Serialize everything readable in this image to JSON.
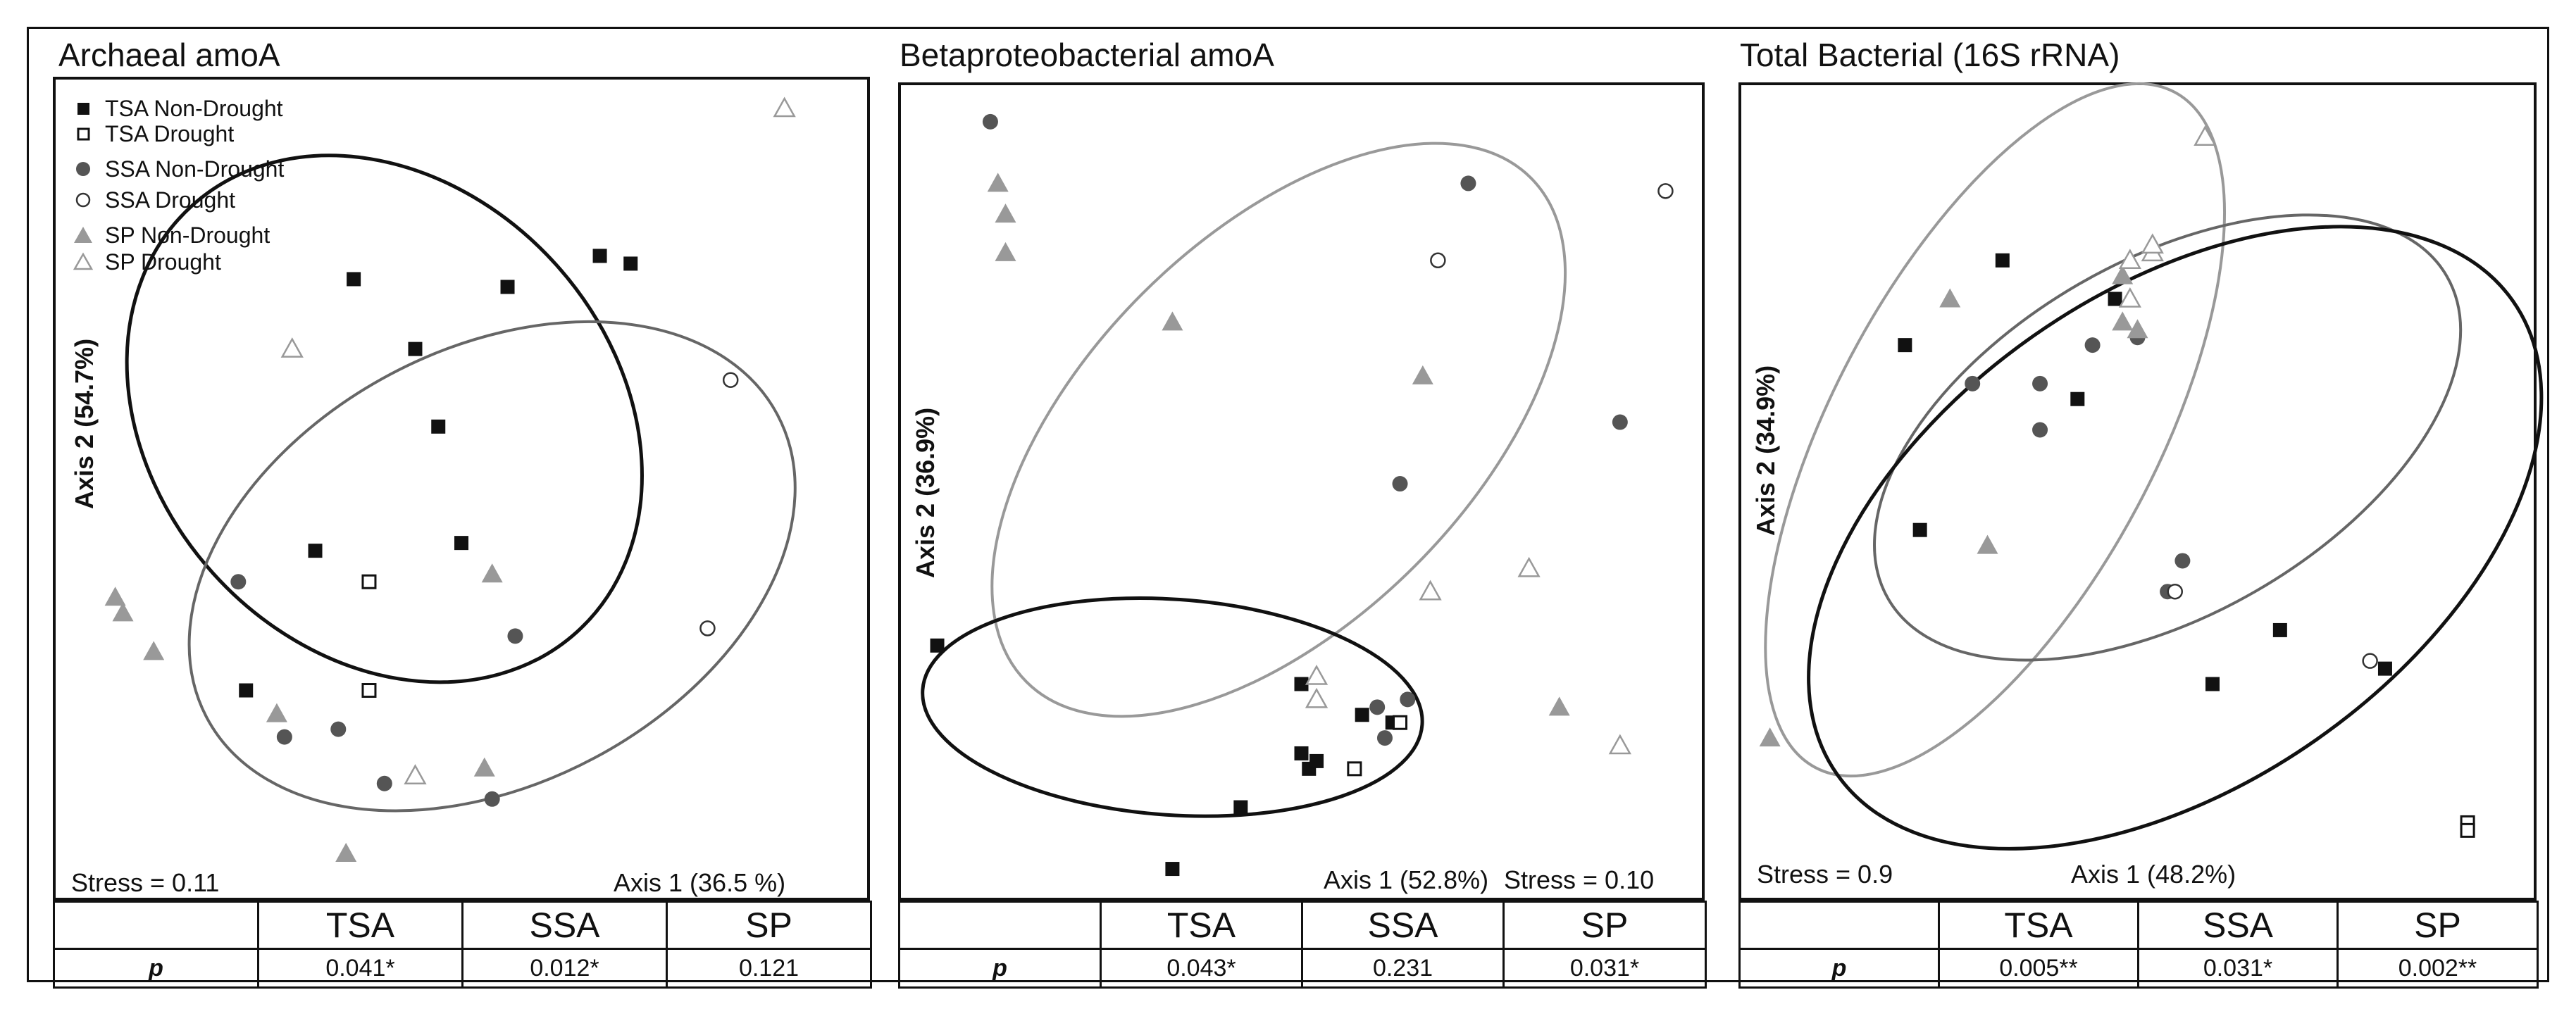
{
  "legend": [
    {
      "label": "TSA Non-Drought",
      "marker": "square-filled"
    },
    {
      "label": "TSA Drought",
      "marker": "square-open"
    },
    {
      "label": "SSA Non-Drought",
      "marker": "circle-filled"
    },
    {
      "label": "SSA Drought",
      "marker": "circle-open"
    },
    {
      "label": "SP Non-Drought",
      "marker": "triangle-filled"
    },
    {
      "label": "SP Drought",
      "marker": "triangle-open"
    }
  ],
  "colors": {
    "tsa": "#111111",
    "ssa": "#555555",
    "sp": "#999999",
    "ellipse_tsa": "#111111",
    "ellipse_ssa": "#666666",
    "ellipse_sp": "#999999"
  },
  "table_headers": [
    "TSA",
    "SSA",
    "SP"
  ],
  "p_label": "p",
  "chart_data": [
    {
      "type": "scatter",
      "title": "Archaeal amoA",
      "xlabel": "Axis 1 (36.5 %)",
      "ylabel": "Axis 2 (54.7%)",
      "stress": "Stress = 0.11",
      "xlim": [
        0,
        100
      ],
      "ylim": [
        0,
        100
      ],
      "p_values": [
        "0.041*",
        "0.012*",
        "0.121"
      ],
      "series": [
        {
          "name": "TSA Non-Drought",
          "marker": "square-filled",
          "points": [
            [
              36,
              77
            ],
            [
              56,
              76
            ],
            [
              68,
              80
            ],
            [
              72,
              79
            ],
            [
              44,
              68
            ],
            [
              47,
              58
            ],
            [
              31,
              42
            ],
            [
              50,
              43
            ],
            [
              22,
              24
            ]
          ]
        },
        {
          "name": "TSA Drought",
          "marker": "square-open",
          "points": [
            [
              38,
              38
            ],
            [
              38,
              24
            ]
          ]
        },
        {
          "name": "SSA Non-Drought",
          "marker": "circle-filled",
          "points": [
            [
              21,
              38
            ],
            [
              57,
              31
            ],
            [
              27,
              18
            ],
            [
              34,
              19
            ],
            [
              40,
              12
            ],
            [
              54,
              10
            ]
          ]
        },
        {
          "name": "SSA Drought",
          "marker": "circle-open",
          "points": [
            [
              85,
              64
            ],
            [
              82,
              32
            ]
          ]
        },
        {
          "name": "SP Non-Drought",
          "marker": "triangle-filled",
          "points": [
            [
              5,
              36
            ],
            [
              6,
              34
            ],
            [
              10,
              29
            ],
            [
              26,
              21
            ],
            [
              54,
              39
            ],
            [
              53,
              14
            ],
            [
              35,
              3
            ]
          ]
        },
        {
          "name": "SP Drought",
          "marker": "triangle-open",
          "points": [
            [
              28,
              68
            ],
            [
              44,
              13
            ],
            [
              92,
              99
            ]
          ]
        }
      ],
      "ellipses": [
        {
          "group": "TSA",
          "cx": 40,
          "cy": 59,
          "rx": 30,
          "ry": 37,
          "angle": -42
        },
        {
          "group": "SSA",
          "cx": 54,
          "cy": 40,
          "rx": 42,
          "ry": 28,
          "angle": -28
        }
      ]
    },
    {
      "type": "scatter",
      "title": "Betaproteobacterial amoA",
      "xlabel": "Axis 1 (52.8%)",
      "ylabel": "Axis 2 (36.9%)",
      "stress": "Stress = 0.10",
      "xlim": [
        0,
        100
      ],
      "ylim": [
        0,
        100
      ],
      "p_values": [
        "0.043*",
        "0.231",
        "0.031*"
      ],
      "series": [
        {
          "name": "TSA Non-Drought",
          "marker": "square-filled",
          "points": [
            [
              2,
              30
            ],
            [
              50,
              25
            ],
            [
              58,
              21
            ],
            [
              62,
              20
            ],
            [
              50,
              16
            ],
            [
              51,
              14
            ],
            [
              52,
              15
            ],
            [
              42,
              9
            ],
            [
              33,
              1
            ]
          ]
        },
        {
          "name": "TSA Drought",
          "marker": "square-open",
          "points": [
            [
              63,
              20
            ],
            [
              57,
              14
            ]
          ]
        },
        {
          "name": "SSA Non-Drought",
          "marker": "circle-filled",
          "points": [
            [
              9,
              98
            ],
            [
              72,
              90
            ],
            [
              63,
              51
            ],
            [
              92,
              59
            ],
            [
              64,
              23
            ],
            [
              61,
              18
            ],
            [
              60,
              22
            ]
          ]
        },
        {
          "name": "SSA Drought",
          "marker": "circle-open",
          "points": [
            [
              68,
              80
            ],
            [
              98,
              89
            ]
          ]
        },
        {
          "name": "SP Non-Drought",
          "marker": "triangle-filled",
          "points": [
            [
              10,
              90
            ],
            [
              11,
              86
            ],
            [
              11,
              81
            ],
            [
              33,
              72
            ],
            [
              66,
              65
            ],
            [
              84,
              22
            ]
          ]
        },
        {
          "name": "SP Drought",
          "marker": "triangle-open",
          "points": [
            [
              52,
              23
            ],
            [
              67,
              37
            ],
            [
              80,
              40
            ],
            [
              92,
              17
            ],
            [
              52,
              26
            ]
          ]
        }
      ],
      "ellipses": [
        {
          "group": "SP",
          "cx": 47,
          "cy": 58,
          "rx": 47,
          "ry": 25,
          "angle": -45
        },
        {
          "group": "TSA",
          "cx": 33,
          "cy": 22,
          "rx": 33,
          "ry": 14,
          "angle": 4
        }
      ]
    },
    {
      "type": "scatter",
      "title": "Total Bacterial (16S rRNA)",
      "xlabel": "Axis 1 (48.2%)",
      "ylabel": "Axis 2 (34.9%)",
      "stress": "Stress = 0.9",
      "xlim": [
        0,
        100
      ],
      "ylim": [
        0,
        100
      ],
      "p_values": [
        "0.005**",
        "0.031*",
        "0.002**"
      ],
      "series": [
        {
          "name": "TSA Non-Drought",
          "marker": "square-filled",
          "points": [
            [
              32,
              80
            ],
            [
              47,
              75
            ],
            [
              19,
              69
            ],
            [
              42,
              62
            ],
            [
              21,
              45
            ],
            [
              69,
              32
            ],
            [
              83,
              27
            ],
            [
              60,
              25
            ]
          ]
        },
        {
          "name": "TSA Drought",
          "marker": "square-open",
          "points": [
            [
              94,
              7
            ],
            [
              94,
              6
            ]
          ]
        },
        {
          "name": "SSA Non-Drought",
          "marker": "circle-filled",
          "points": [
            [
              28,
              64
            ],
            [
              37,
              64
            ],
            [
              44,
              69
            ],
            [
              50,
              70
            ],
            [
              37,
              58
            ],
            [
              56,
              41
            ],
            [
              54,
              37
            ]
          ]
        },
        {
          "name": "SSA Drought",
          "marker": "circle-open",
          "points": [
            [
              55,
              37
            ],
            [
              81,
              28
            ]
          ]
        },
        {
          "name": "SP Non-Drought",
          "marker": "triangle-filled",
          "points": [
            [
              1,
              18
            ],
            [
              30,
              43
            ],
            [
              25,
              75
            ],
            [
              48,
              78
            ],
            [
              48,
              72
            ],
            [
              50,
              71
            ]
          ]
        },
        {
          "name": "SP Drought",
          "marker": "triangle-open",
          "points": [
            [
              59,
              96
            ],
            [
              49,
              80
            ],
            [
              49,
              75
            ],
            [
              52,
              81
            ],
            [
              52,
              82
            ]
          ]
        }
      ],
      "ellipses": [
        {
          "group": "SP",
          "cx": 31,
          "cy": 58,
          "rx": 51,
          "ry": 21,
          "angle": -62
        },
        {
          "group": "SSA",
          "cx": 54,
          "cy": 57,
          "rx": 43,
          "ry": 23,
          "angle": -30
        },
        {
          "group": "TSA",
          "cx": 55,
          "cy": 44,
          "rx": 55,
          "ry": 32,
          "angle": -35
        }
      ]
    }
  ]
}
